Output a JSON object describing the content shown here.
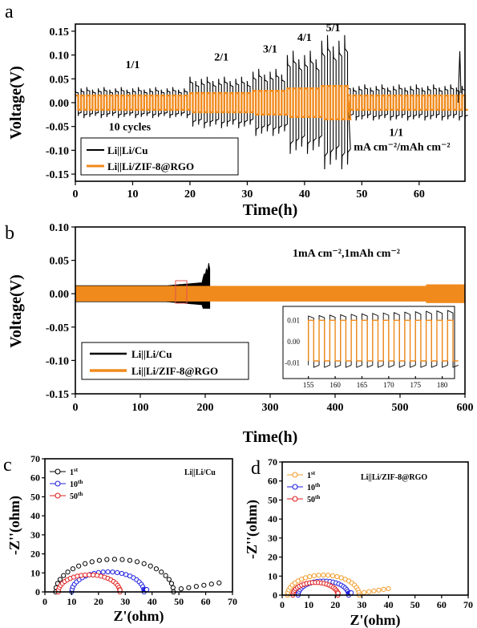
{
  "panels": {
    "a": {
      "letter": "a",
      "xlabel": "Time(h)",
      "ylabel": "Voltage(V)",
      "xticks": [
        0,
        10,
        20,
        30,
        40,
        50,
        60
      ],
      "yticks": [
        "-0.15",
        "-0.10",
        "-0.05",
        "0.00",
        "0.05",
        "0.10",
        "0.15"
      ],
      "annotations": [
        {
          "text": "1/1",
          "x": 10,
          "y": 0.072
        },
        {
          "text": "2/1",
          "x": 25.5,
          "y": 0.088
        },
        {
          "text": "3/1",
          "x": 34,
          "y": 0.105
        },
        {
          "text": "4/1",
          "x": 40,
          "y": 0.13
        },
        {
          "text": "5/1",
          "x": 45,
          "y": 0.15
        },
        {
          "text": "10 cycles",
          "x": 9.5,
          "y": -0.058
        },
        {
          "text": "1/1",
          "x": 56,
          "y": -0.07
        },
        {
          "text": "mA cm⁻²/mAh cm⁻²",
          "x": 57,
          "y": -0.1
        }
      ],
      "legend": [
        "Li||Li/Cu",
        "Li||Li/ZIF-8@RGO"
      ]
    },
    "b": {
      "letter": "b",
      "xlabel": "Time(h)",
      "ylabel": "Voltage(V)",
      "xticks": [
        0,
        100,
        200,
        300,
        400,
        500,
        600
      ],
      "yticks": [
        "-0.15",
        "-0.10",
        "-0.05",
        "0.00",
        "0.05",
        "0.10"
      ],
      "condition": "1mA cm⁻²,1mAh cm⁻²",
      "legend": [
        "Li||Li/Cu",
        "Li||Li/ZIF-8@RGO"
      ],
      "inset": {
        "xticks": [
          155,
          160,
          165,
          170,
          175,
          180
        ],
        "yticks": [
          "-0.01",
          "0.00",
          "0.01"
        ]
      }
    },
    "c": {
      "letter": "c",
      "xlabel": "Z'(ohm)",
      "ylabel": "-Z''(ohm)",
      "title": "Li||Li/Cu",
      "xticks": [
        0,
        10,
        20,
        30,
        40,
        50,
        60,
        70
      ],
      "yticks": [
        0,
        10,
        20,
        30,
        40,
        50,
        60,
        70
      ],
      "legend": [
        {
          "base": "1",
          "sup": "st"
        },
        {
          "base": "10",
          "sup": "th"
        },
        {
          "base": "50",
          "sup": "th"
        }
      ]
    },
    "d": {
      "letter": "d",
      "xlabel": "Z'(ohm)",
      "ylabel": "-Z''(ohm)",
      "title": "Li||Li/ZIF-8@RGO",
      "xticks": [
        0,
        10,
        20,
        30,
        40,
        50,
        60,
        70
      ],
      "yticks": [
        0,
        10,
        20,
        30,
        40,
        50,
        60,
        70
      ],
      "legend": [
        {
          "base": "1",
          "sup": "st"
        },
        {
          "base": "10",
          "sup": "th"
        },
        {
          "base": "50",
          "sup": "th"
        }
      ]
    }
  },
  "colors": {
    "cu": "#000000",
    "zif": "#f08a1c",
    "black": "#000000",
    "blue": "#1f1fe0",
    "red": "#e01f1f",
    "orange": "#f39c2a",
    "inset_box": "#e05050"
  },
  "chart_data": [
    {
      "type": "line",
      "panel": "a",
      "xlim": [
        0,
        68
      ],
      "ylim": [
        -0.165,
        0.165
      ],
      "segments": [
        {
          "t": [
            0,
            20
          ],
          "current_ratio": "1/1",
          "cu_amp": 0.03,
          "zif_amp": 0.015
        },
        {
          "t": [
            20,
            31
          ],
          "current_ratio": "2/1",
          "cu_amp": 0.05,
          "zif_amp": 0.02
        },
        {
          "t": [
            31,
            37
          ],
          "current_ratio": "3/1",
          "cu_amp": 0.065,
          "zif_amp": 0.025
        },
        {
          "t": [
            37,
            43
          ],
          "current_ratio": "4/1",
          "cu_amp": 0.1,
          "zif_amp": 0.03
        },
        {
          "t": [
            43,
            47.5
          ],
          "current_ratio": "5/1",
          "cu_amp": 0.13,
          "zif_amp": 0.035
        },
        {
          "t": [
            47.5,
            68
          ],
          "current_ratio": "1/1",
          "cu_amp": 0.035,
          "zif_amp": 0.015
        }
      ],
      "series": [
        {
          "name": "Li||Li/Cu"
        },
        {
          "name": "Li||Li/ZIF-8@RGO"
        }
      ]
    },
    {
      "type": "line",
      "panel": "b",
      "xlim": [
        0,
        600
      ],
      "ylim": [
        -0.15,
        0.1
      ],
      "series": [
        {
          "name": "Li||Li/Cu",
          "t_end": 207,
          "amp_start": 0.012,
          "amp_end": 0.05
        },
        {
          "name": "Li||Li/ZIF-8@RGO",
          "t_end": 600,
          "amp_start": 0.013,
          "amp_end": 0.012
        }
      ]
    },
    {
      "type": "scatter",
      "panel": "c",
      "xlim": [
        0,
        70
      ],
      "ylim": [
        0,
        70
      ],
      "series": [
        {
          "name": "1st",
          "Rs": 4,
          "Rct": 44,
          "tail_end": 65
        },
        {
          "name": "10th",
          "Rs": 10,
          "Rct": 27,
          "tail_end": 38
        },
        {
          "name": "50th",
          "Rs": 5,
          "Rct": 23,
          "tail_end": 28
        }
      ]
    },
    {
      "type": "scatter",
      "panel": "d",
      "xlim": [
        0,
        70
      ],
      "ylim": [
        0,
        70
      ],
      "series": [
        {
          "name": "1st",
          "Rs": 2,
          "Rct": 27,
          "tail_end": 40
        },
        {
          "name": "10th",
          "Rs": 6,
          "Rct": 19,
          "tail_end": 26
        },
        {
          "name": "50th",
          "Rs": 4,
          "Rct": 17,
          "tail_end": 21
        }
      ]
    }
  ]
}
